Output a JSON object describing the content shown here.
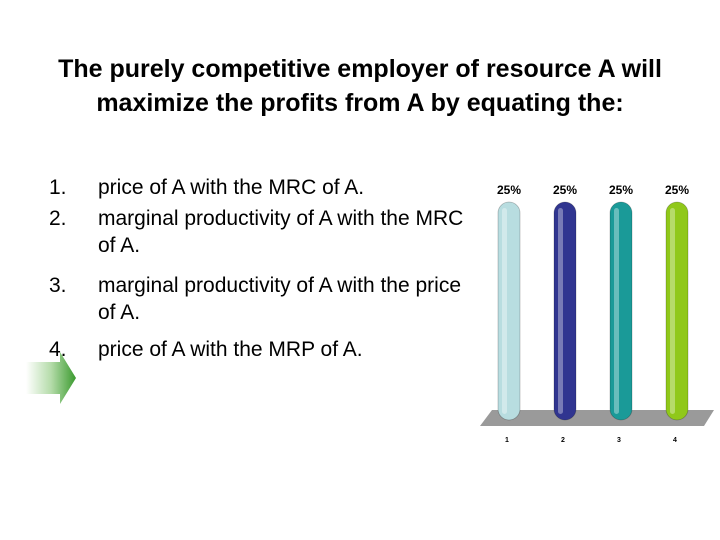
{
  "slide": {
    "title": "The purely competitive employer of resource A will maximize the profits from A by equating the:",
    "options": [
      {
        "number": "1.",
        "text": "price of A with the MRC of A."
      },
      {
        "number": "2.",
        "text": "marginal productivity of A with the MRC of A."
      },
      {
        "number": "3.",
        "text": "marginal productivity of A with the price of A."
      },
      {
        "number": "4.",
        "text": "price of A with the MRP of A."
      }
    ],
    "arrow_color": "#3a9a2e"
  },
  "chart_data": {
    "type": "bar",
    "categories": [
      "1",
      "2",
      "3",
      "4"
    ],
    "values": [
      25,
      25,
      25,
      25
    ],
    "data_labels": [
      "25%",
      "25%",
      "25%",
      "25%"
    ],
    "colors": [
      "#b8dde0",
      "#303590",
      "#1a9a98",
      "#90c81a"
    ],
    "ylim": [
      0,
      25
    ],
    "grid": false,
    "legend": "none"
  }
}
